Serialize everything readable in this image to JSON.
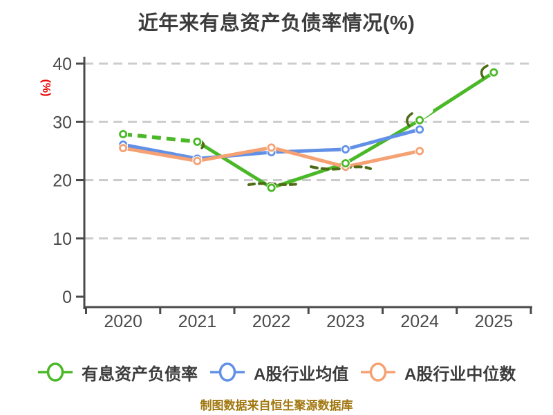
{
  "title": "近年来有息资产负债率情况(%)",
  "source_note": "制图数据来自恒生聚源数据库",
  "y_axis_label": "(%)",
  "legend": [
    {
      "label": "有息资产负债率",
      "color": "#4ab827",
      "marker": "open-circle-on-line"
    },
    {
      "label": "A股行业均值",
      "color": "#6190e6",
      "marker": "open-circle-on-line"
    },
    {
      "label": "A股行业中位数",
      "color": "#f5a173",
      "marker": "open-circle-on-line"
    }
  ],
  "chart_data": {
    "type": "line",
    "title": "近年来有息资产负债率情况(%)",
    "categories": [
      "2020",
      "2021",
      "2022",
      "2023",
      "2024",
      "2025"
    ],
    "series": [
      {
        "name": "有息资产负债率",
        "color": "#4ab827",
        "dash_first": true,
        "line_style": "hand-drawn dashed 2020→2021, solid afterwards",
        "values": [
          27.9,
          26.6,
          18.7,
          22.9,
          30.3,
          38.5
        ]
      },
      {
        "name": "A股行业均值",
        "color": "#6190e6",
        "dash_first": false,
        "line_style": "solid",
        "values": [
          26.1,
          23.7,
          24.8,
          25.3,
          28.7,
          null
        ]
      },
      {
        "name": "A股行业中位数",
        "color": "#f5a173",
        "dash_first": false,
        "line_style": "solid",
        "values": [
          25.5,
          23.3,
          25.6,
          22.3,
          25.0,
          null
        ]
      }
    ],
    "xlabel": "",
    "ylabel": "(%)",
    "ylim": [
      0,
      40
    ],
    "y_ticks": [
      0,
      10,
      20,
      30,
      40
    ],
    "grid": "horizontal dashed",
    "legend_position": "bottom",
    "marker": "white-filled open circles"
  },
  "colors": {
    "title": "#3c3c3c",
    "axis": "#4a4a4a",
    "gridline": "#cccccc",
    "ylabel": "#e80000",
    "source_note": "#a1770e",
    "sketch_accent": "#4e6b16",
    "background": "#ffffff"
  }
}
